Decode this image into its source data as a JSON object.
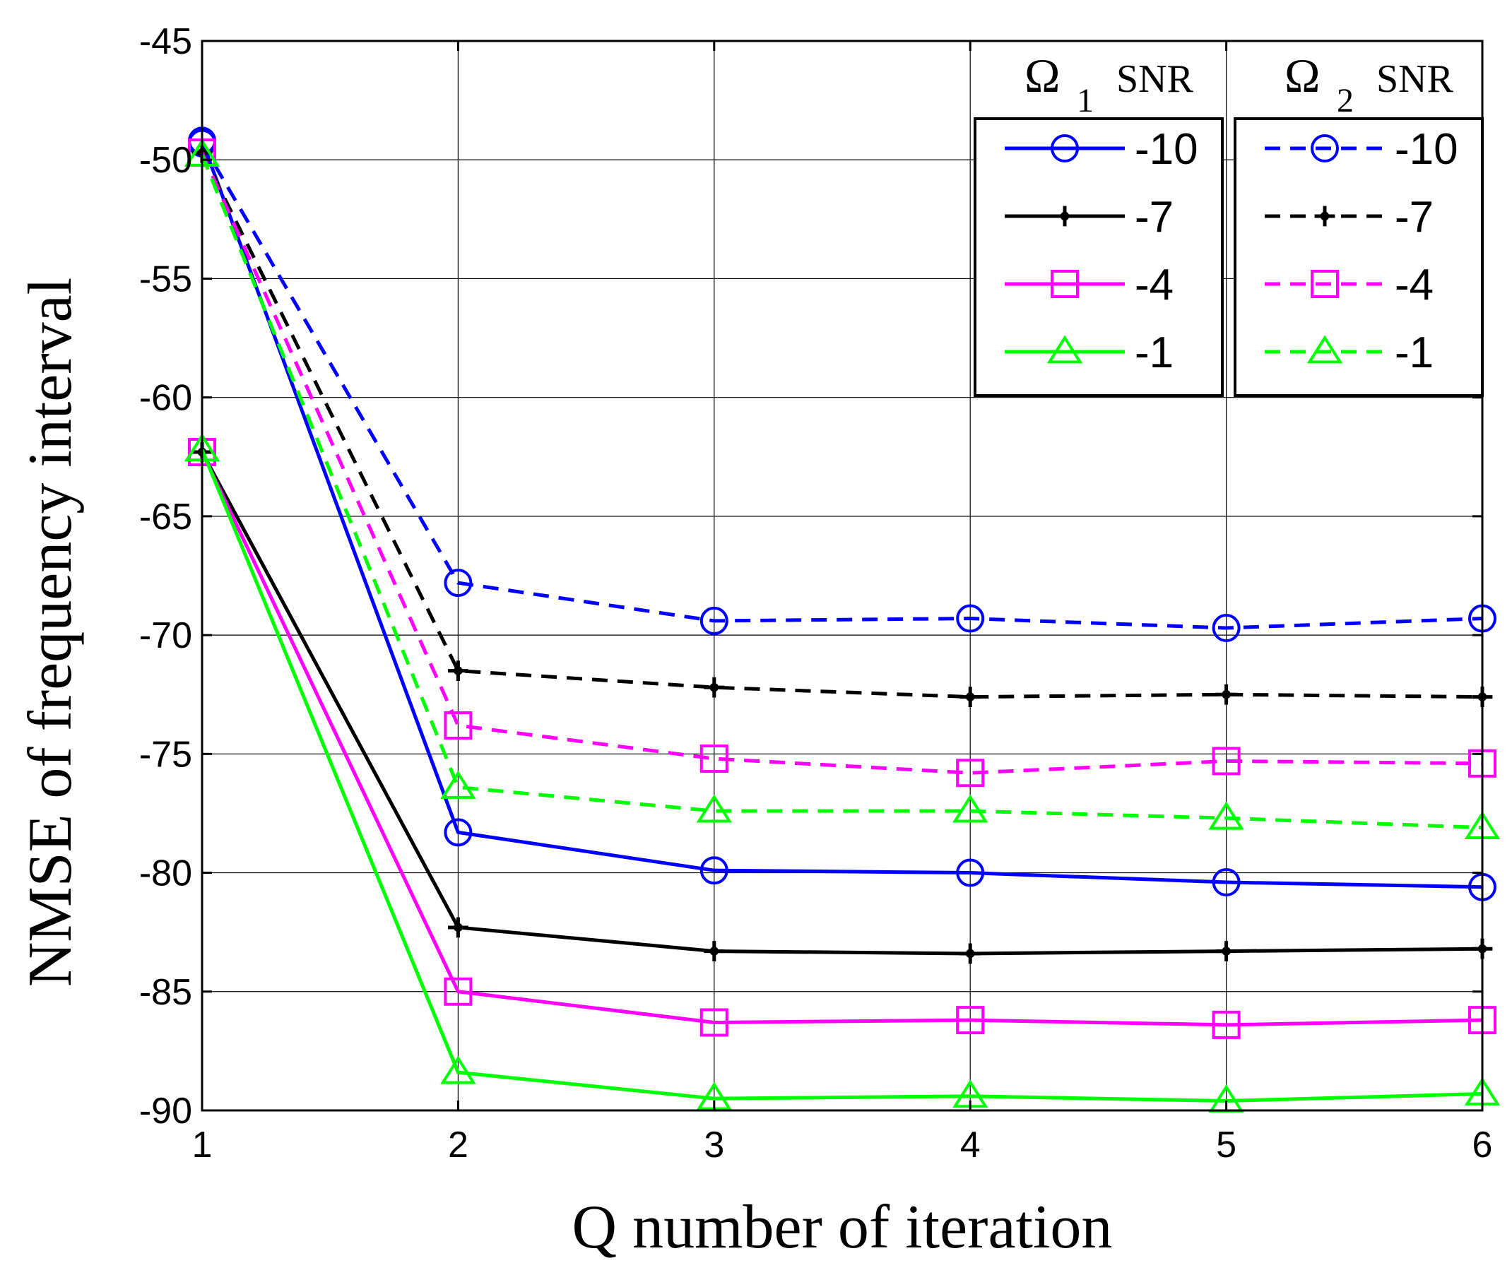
{
  "chart_data": {
    "type": "line",
    "title": "",
    "xlabel": "Q number of iteration",
    "ylabel": "NMSE of frequency interval",
    "x": [
      1,
      2,
      3,
      4,
      5,
      6
    ],
    "xlim": [
      1,
      6
    ],
    "ylim": [
      -90,
      -45
    ],
    "xticks": [
      1,
      2,
      3,
      4,
      5,
      6
    ],
    "yticks": [
      -45,
      -50,
      -55,
      -60,
      -65,
      -70,
      -75,
      -80,
      -85,
      -90
    ],
    "grid": true,
    "legend": {
      "placement": "top-right",
      "groups": [
        {
          "head_symbol": "Ω",
          "head_sub": "1",
          "head_text": "SNR",
          "entries": [
            "-10",
            "-7",
            "-4",
            "-1"
          ]
        },
        {
          "head_symbol": "Ω",
          "head_sub": "2",
          "head_text": "SNR",
          "entries": [
            "-10",
            "-7",
            "-4",
            "-1"
          ]
        }
      ]
    },
    "series": [
      {
        "name": "Ω1 SNR -10",
        "group": 0,
        "color": "#0000ff",
        "dash": "solid",
        "marker": "circle",
        "values": [
          -49.2,
          -78.3,
          -79.9,
          -80.0,
          -80.4,
          -80.6
        ]
      },
      {
        "name": "Ω1 SNR -7",
        "group": 0,
        "color": "#000000",
        "dash": "solid",
        "marker": "plus",
        "values": [
          -62.3,
          -82.3,
          -83.3,
          -83.4,
          -83.3,
          -83.2
        ]
      },
      {
        "name": "Ω1 SNR -4",
        "group": 0,
        "color": "#ff00ff",
        "dash": "solid",
        "marker": "square",
        "values": [
          -62.3,
          -85.0,
          -86.3,
          -86.2,
          -86.4,
          -86.2
        ]
      },
      {
        "name": "Ω1 SNR -1",
        "group": 0,
        "color": "#00ff00",
        "dash": "solid",
        "marker": "triangle",
        "values": [
          -62.2,
          -88.4,
          -89.5,
          -89.4,
          -89.6,
          -89.3
        ]
      },
      {
        "name": "Ω2 SNR -10",
        "group": 1,
        "color": "#0000ff",
        "dash": "dashed",
        "marker": "circle",
        "values": [
          -49.3,
          -67.8,
          -69.4,
          -69.3,
          -69.7,
          -69.3
        ]
      },
      {
        "name": "Ω2 SNR -7",
        "group": 1,
        "color": "#000000",
        "dash": "dashed",
        "marker": "plus",
        "values": [
          -49.7,
          -71.5,
          -72.2,
          -72.6,
          -72.5,
          -72.6
        ]
      },
      {
        "name": "Ω2 SNR -4",
        "group": 1,
        "color": "#ff00ff",
        "dash": "dashed",
        "marker": "square",
        "values": [
          -49.7,
          -73.8,
          -75.2,
          -75.8,
          -75.3,
          -75.4
        ]
      },
      {
        "name": "Ω2 SNR -1",
        "group": 1,
        "color": "#00ff00",
        "dash": "dashed",
        "marker": "triangle",
        "values": [
          -49.8,
          -76.4,
          -77.4,
          -77.4,
          -77.7,
          -78.1
        ]
      }
    ]
  }
}
